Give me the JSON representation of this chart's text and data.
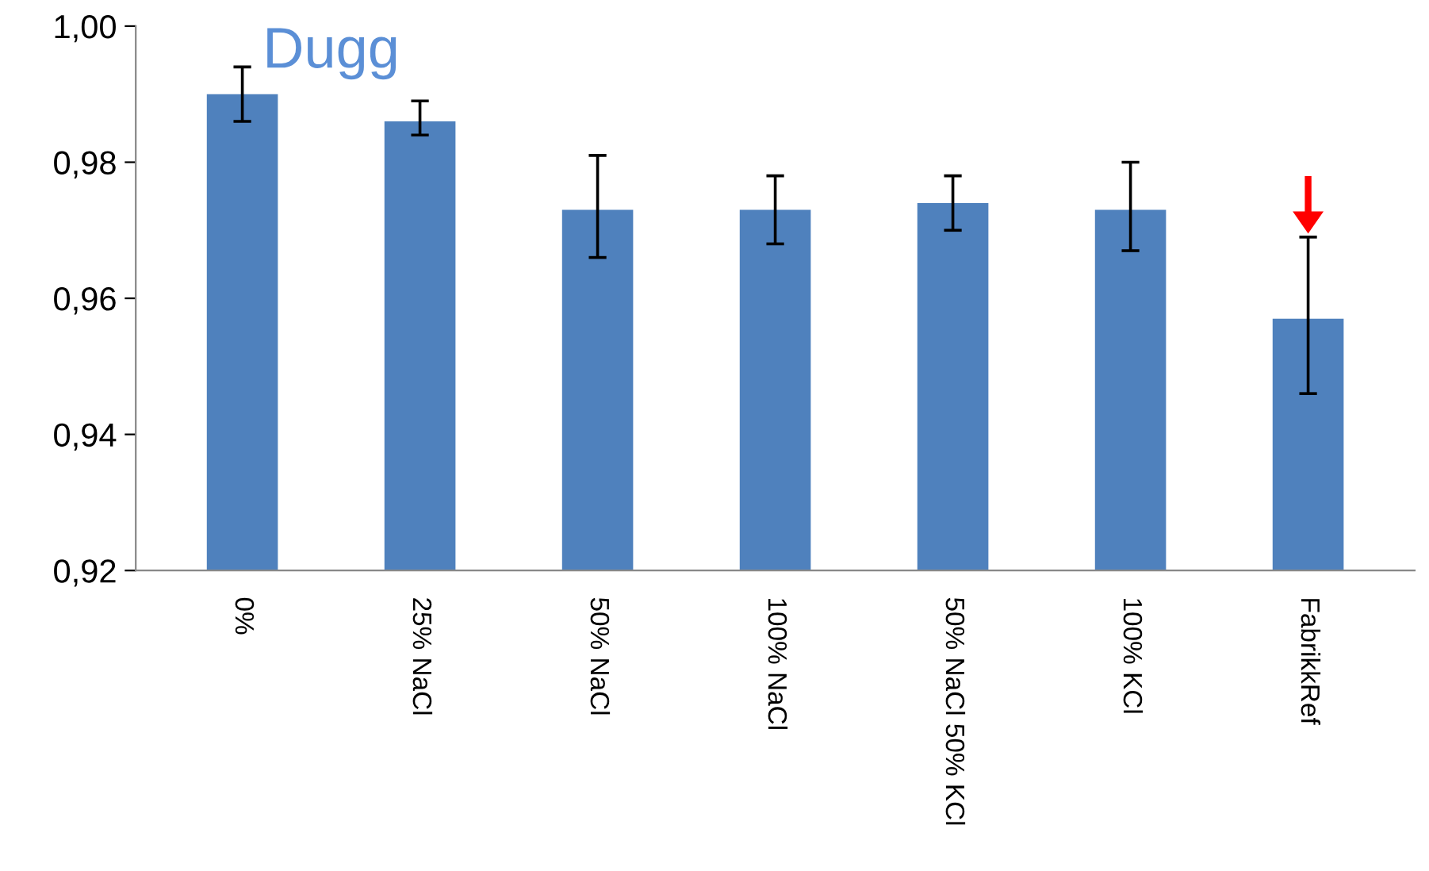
{
  "chart_data": {
    "type": "bar",
    "title": "Dugg",
    "categories": [
      "0%",
      "25% NaCl",
      "50% NaCl",
      "100% NaCl",
      "50% NaCl 50% KCl",
      "100% KCl",
      "FabrikkRef"
    ],
    "values": [
      0.99,
      0.986,
      0.973,
      0.973,
      0.974,
      0.973,
      0.957
    ],
    "errors": [
      [
        0.986,
        0.994
      ],
      [
        0.984,
        0.989
      ],
      [
        0.966,
        0.981
      ],
      [
        0.968,
        0.978
      ],
      [
        0.97,
        0.978
      ],
      [
        0.967,
        0.98
      ],
      [
        0.946,
        0.969
      ]
    ],
    "color": "#4f81bd",
    "ylim": [
      0.92,
      1.0
    ],
    "yticks": [
      {
        "value": 0.92,
        "label": "0,92"
      },
      {
        "value": 0.94,
        "label": "0,94"
      },
      {
        "value": 0.96,
        "label": "0,96"
      },
      {
        "value": 0.98,
        "label": "0,98"
      },
      {
        "value": 1.0,
        "label": "1,00"
      }
    ],
    "grid": false,
    "legend": false
  }
}
